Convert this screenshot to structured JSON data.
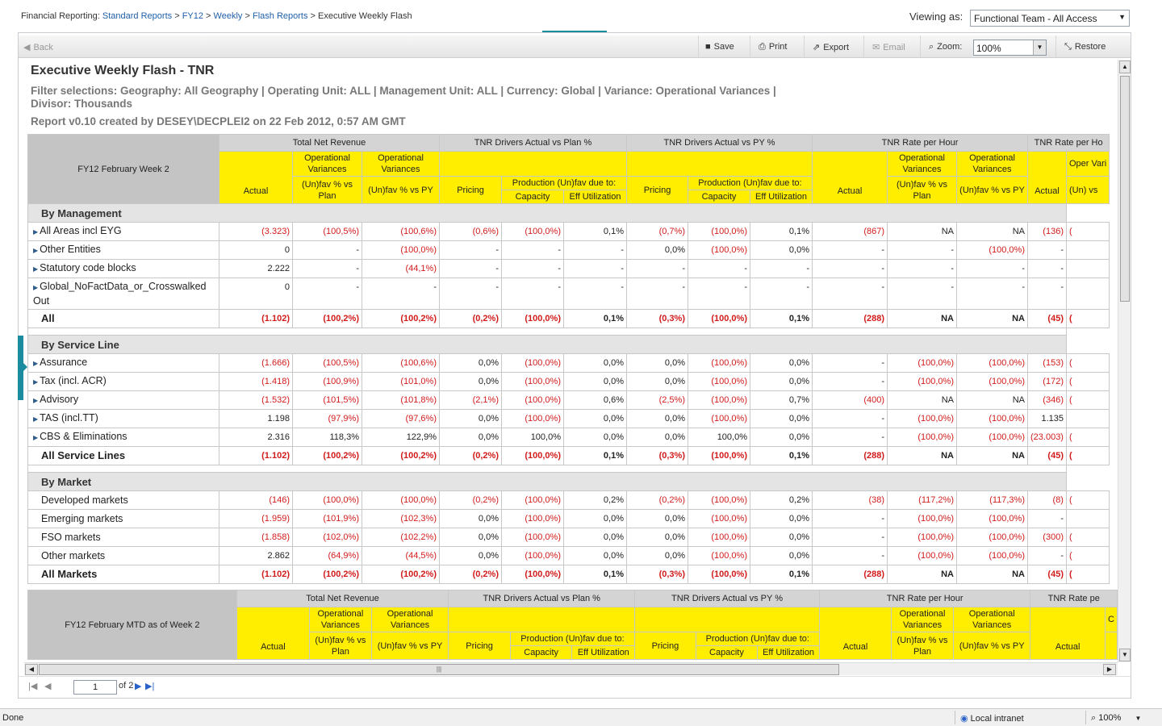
{
  "breadcrumb": {
    "prefix": "Financial Reporting:",
    "links": [
      "Standard Reports",
      "FY12",
      "Weekly",
      "Flash Reports"
    ],
    "separator": ">",
    "current": "Executive Weekly Flash"
  },
  "viewing": {
    "label": "Viewing as:",
    "value": "Functional Team - All Access"
  },
  "toolbar": {
    "back": "Back",
    "save": "Save",
    "print": "Print",
    "export": "Export",
    "email": "Email",
    "zoom_label": "Zoom:",
    "zoom_value": "100%",
    "restore": "Restore"
  },
  "report": {
    "title": "Executive Weekly Flash - TNR",
    "filter": "Filter selections: Geography: All Geography | Operating Unit: ALL | Management Unit: ALL | Currency: Global | Variance: Operational Variances | Divisor: Thousands",
    "created": "Report v0.10 created by DESEY\\DECPLEI2 on 22 Feb 2012, 0:57 AM GMT"
  },
  "table1": {
    "period": "FY12 February Week 2",
    "groups": [
      "Total Net Revenue",
      "TNR Drivers Actual vs Plan %",
      "TNR Drivers Actual vs PY %",
      "TNR Rate per Hour",
      "TNR Rate per Ho"
    ],
    "subheaders": {
      "actual": "Actual",
      "opvar": "Operational Variances",
      "vs_plan": "(Un)fav % vs Plan",
      "vs_py": "(Un)fav % vs PY",
      "pricing": "Pricing",
      "production": "Production (Un)fav due to:",
      "capacity": "Capacity",
      "eff": "Eff Utilization",
      "cut_opvar": "Oper Vari",
      "cut_unfav": "(Un) vs"
    },
    "sections": [
      {
        "title": "By Management",
        "rows": [
          {
            "label": "All Areas incl EYG",
            "arrow": true,
            "v": [
              "(3.323)",
              "(100,5%)",
              "(100,6%)",
              "(0,6%)",
              "(100,0%)",
              "0,1%",
              "(0,7%)",
              "(100,0%)",
              "0,1%",
              "(867)",
              "NA",
              "NA",
              "(136)",
              "("
            ]
          },
          {
            "label": "Other Entities",
            "arrow": true,
            "v": [
              "0",
              "-",
              "(100,0%)",
              "-",
              "-",
              "-",
              "0,0%",
              "(100,0%)",
              "0,0%",
              "-",
              "-",
              "(100,0%)",
              "-",
              ""
            ]
          },
          {
            "label": "Statutory code blocks",
            "arrow": true,
            "v": [
              "2.222",
              "-",
              "(44,1%)",
              "-",
              "-",
              "-",
              "-",
              "-",
              "-",
              "-",
              "-",
              "-",
              "-",
              ""
            ]
          },
          {
            "label": "Global_NoFactData_or_Crosswalked Out",
            "arrow": true,
            "v": [
              "0",
              "-",
              "-",
              "-",
              "-",
              "-",
              "-",
              "-",
              "-",
              "-",
              "-",
              "-",
              "-",
              ""
            ]
          },
          {
            "label": "All",
            "total": true,
            "v": [
              "(1.102)",
              "(100,2%)",
              "(100,2%)",
              "(0,2%)",
              "(100,0%)",
              "0,1%",
              "(0,3%)",
              "(100,0%)",
              "0,1%",
              "(288)",
              "NA",
              "NA",
              "(45)",
              "("
            ]
          }
        ]
      },
      {
        "title": "By Service Line",
        "rows": [
          {
            "label": "Assurance",
            "arrow": true,
            "v": [
              "(1.666)",
              "(100,5%)",
              "(100,6%)",
              "0,0%",
              "(100,0%)",
              "0,0%",
              "0,0%",
              "(100,0%)",
              "0,0%",
              "-",
              "(100,0%)",
              "(100,0%)",
              "(153)",
              "("
            ]
          },
          {
            "label": "Tax (incl. ACR)",
            "arrow": true,
            "v": [
              "(1.418)",
              "(100,9%)",
              "(101,0%)",
              "0,0%",
              "(100,0%)",
              "0,0%",
              "0,0%",
              "(100,0%)",
              "0,0%",
              "-",
              "(100,0%)",
              "(100,0%)",
              "(172)",
              "("
            ]
          },
          {
            "label": "Advisory",
            "arrow": true,
            "v": [
              "(1.532)",
              "(101,5%)",
              "(101,8%)",
              "(2,1%)",
              "(100,0%)",
              "0,6%",
              "(2,5%)",
              "(100,0%)",
              "0,7%",
              "(400)",
              "NA",
              "NA",
              "(346)",
              "("
            ]
          },
          {
            "label": "TAS (incl.TT)",
            "arrow": true,
            "v": [
              "1.198",
              "(97,9%)",
              "(97,6%)",
              "0,0%",
              "(100,0%)",
              "0,0%",
              "0,0%",
              "(100,0%)",
              "0,0%",
              "-",
              "(100,0%)",
              "(100,0%)",
              "1.135",
              ""
            ]
          },
          {
            "label": "CBS & Eliminations",
            "arrow": true,
            "v": [
              "2.316",
              "118,3%",
              "122,9%",
              "0,0%",
              "100,0%",
              "0,0%",
              "0,0%",
              "100,0%",
              "0,0%",
              "-",
              "(100,0%)",
              "(100,0%)",
              "(23.003)",
              "("
            ]
          },
          {
            "label": "All Service Lines",
            "total": true,
            "v": [
              "(1.102)",
              "(100,2%)",
              "(100,2%)",
              "(0,2%)",
              "(100,0%)",
              "0,1%",
              "(0,3%)",
              "(100,0%)",
              "0,1%",
              "(288)",
              "NA",
              "NA",
              "(45)",
              "("
            ]
          }
        ]
      },
      {
        "title": "By Market",
        "rows": [
          {
            "label": "Developed markets",
            "v": [
              "(146)",
              "(100,0%)",
              "(100,0%)",
              "(0,2%)",
              "(100,0%)",
              "0,2%",
              "(0,2%)",
              "(100,0%)",
              "0,2%",
              "(38)",
              "(117,2%)",
              "(117,3%)",
              "(8)",
              "("
            ]
          },
          {
            "label": "Emerging markets",
            "v": [
              "(1.959)",
              "(101,9%)",
              "(102,3%)",
              "0,0%",
              "(100,0%)",
              "0,0%",
              "0,0%",
              "(100,0%)",
              "0,0%",
              "-",
              "(100,0%)",
              "(100,0%)",
              "-",
              ""
            ]
          },
          {
            "label": "FSO markets",
            "v": [
              "(1.858)",
              "(102,0%)",
              "(102,2%)",
              "0,0%",
              "(100,0%)",
              "0,0%",
              "0,0%",
              "(100,0%)",
              "0,0%",
              "-",
              "(100,0%)",
              "(100,0%)",
              "(300)",
              "("
            ]
          },
          {
            "label": "Other markets",
            "v": [
              "2.862",
              "(64,9%)",
              "(44,5%)",
              "0,0%",
              "(100,0%)",
              "0,0%",
              "0,0%",
              "(100,0%)",
              "0,0%",
              "-",
              "(100,0%)",
              "(100,0%)",
              "-",
              "("
            ]
          },
          {
            "label": "All Markets",
            "total": true,
            "v": [
              "(1.102)",
              "(100,2%)",
              "(100,2%)",
              "(0,2%)",
              "(100,0%)",
              "0,1%",
              "(0,3%)",
              "(100,0%)",
              "0,1%",
              "(288)",
              "NA",
              "NA",
              "(45)",
              "("
            ]
          }
        ]
      }
    ]
  },
  "table2": {
    "period": "FY12 February MTD as of Week 2",
    "groups": [
      "Total Net Revenue",
      "TNR Drivers Actual vs Plan %",
      "TNR Drivers Actual vs PY %",
      "TNR Rate per Hour",
      "TNR Rate pe"
    ],
    "cut_col": "C"
  },
  "pager": {
    "page": "1",
    "of": "of 2"
  },
  "status": {
    "done": "Done",
    "zone": "Local intranet",
    "zoom": "100%"
  },
  "colors": {
    "accent": "#1b8ca0",
    "yellow": "#ffee00",
    "negative": "#d21b1b",
    "link": "#1f5fa8"
  }
}
